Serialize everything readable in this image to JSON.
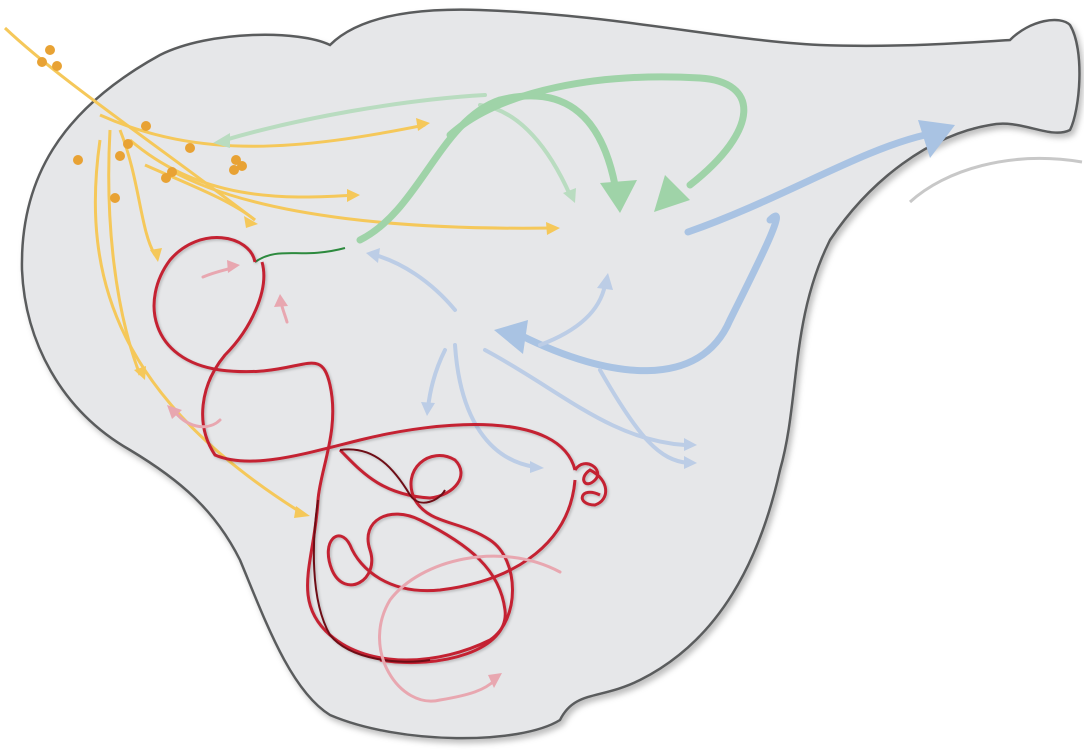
{
  "diagram": {
    "colors": {
      "background": "#ffffff",
      "region_fill": "#e6e7e9",
      "region_stroke": "#5a5b5d",
      "yellow": "#f5c85a",
      "orange_dot": "#e8a234",
      "green": "#9fd3a8",
      "green_light": "#b9dcc0",
      "dark_green": "#2d8a3e",
      "blue": "#a9c3e3",
      "blue_light": "#bccde6",
      "red": "#c42032",
      "dark_red": "#6e0f16",
      "pink": "#e8a7b0",
      "outer_gray": "#c8c8c8"
    },
    "series": [
      {
        "color": "yellow",
        "kind": "arrows"
      },
      {
        "color": "green",
        "kind": "arrows"
      },
      {
        "color": "blue",
        "kind": "arrows"
      },
      {
        "color": "red",
        "kind": "tangled-curve"
      },
      {
        "color": "pink",
        "kind": "arrows"
      },
      {
        "color": "orange_dot",
        "kind": "dots"
      }
    ]
  }
}
